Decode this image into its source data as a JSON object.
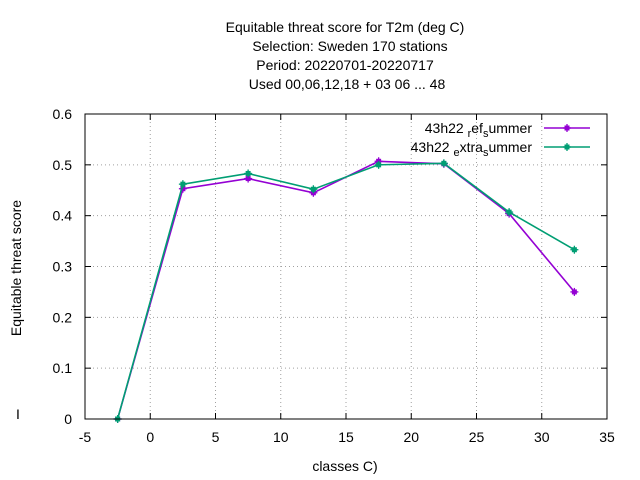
{
  "chart_data": {
    "type": "line",
    "title_lines": [
      "Equitable threat score  for T2m (deg C)",
      "Selection: Sweden    170 stations",
      "Period: 20220701-20220717",
      "Used  00,06,12,18  + 03 06 ... 48"
    ],
    "xlabel": "classes C)",
    "ylabel": "Equitable threat score",
    "left_marker": "I",
    "xlim": [
      -5,
      35
    ],
    "ylim": [
      0,
      0.6
    ],
    "xticks": [
      -5,
      0,
      5,
      10,
      15,
      20,
      25,
      30,
      35
    ],
    "yticks": [
      0,
      0.1,
      0.2,
      0.3,
      0.4,
      0.5,
      0.6
    ],
    "grid": true,
    "legend_position": "top-right",
    "x": [
      -2.5,
      2.5,
      7.5,
      12.5,
      17.5,
      22.5,
      27.5,
      32.5
    ],
    "series": [
      {
        "name": "43h22 ref summer",
        "legend": {
          "a": "43h22 ",
          "sub1": "r",
          "b": "ef",
          "sub2": "s",
          "c": "ummer"
        },
        "color": "#9400d3",
        "values": [
          0.0,
          0.453,
          0.473,
          0.445,
          0.507,
          0.502,
          0.404,
          0.25
        ]
      },
      {
        "name": "43h22 extra summer",
        "legend": {
          "a": "43h22 ",
          "sub1": "e",
          "b": "xtra",
          "sub2": "s",
          "c": "ummer"
        },
        "color": "#009e73",
        "values": [
          0.0,
          0.462,
          0.483,
          0.452,
          0.5,
          0.503,
          0.407,
          0.333
        ]
      }
    ]
  }
}
